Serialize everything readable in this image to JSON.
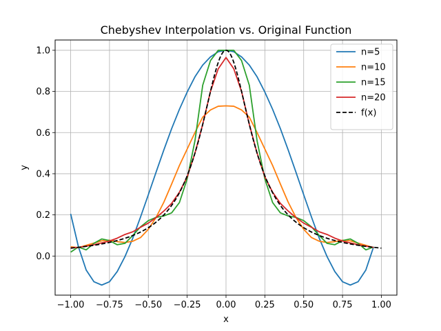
{
  "chart_data": {
    "type": "line",
    "title": "Chebyshev Interpolation vs. Original Function",
    "xlabel": "x",
    "ylabel": "y",
    "xlim": [
      -1.1,
      1.1
    ],
    "ylim": [
      -0.19,
      1.05
    ],
    "xticks": [
      -1.0,
      -0.75,
      -0.5,
      -0.25,
      0.0,
      0.25,
      0.5,
      0.75,
      1.0
    ],
    "xtick_labels": [
      "−1.00",
      "−0.75",
      "−0.50",
      "−0.25",
      "0.00",
      "0.25",
      "0.50",
      "0.75",
      "1.00"
    ],
    "yticks": [
      0.0,
      0.2,
      0.4,
      0.6,
      0.8,
      1.0
    ],
    "ytick_labels": [
      "0.0",
      "0.2",
      "0.4",
      "0.6",
      "0.8",
      "1.0"
    ],
    "grid": true,
    "legend_position": "upper right",
    "x": [
      -1.0,
      -0.95,
      -0.9,
      -0.85,
      -0.8,
      -0.75,
      -0.7,
      -0.65,
      -0.6,
      -0.55,
      -0.5,
      -0.45,
      -0.4,
      -0.35,
      -0.3,
      -0.25,
      -0.2,
      -0.15,
      -0.1,
      -0.05,
      0.0,
      0.05,
      0.1,
      0.15,
      0.2,
      0.25,
      0.3,
      0.35,
      0.4,
      0.45,
      0.5,
      0.55,
      0.6,
      0.65,
      0.7,
      0.75,
      0.8,
      0.85,
      0.9,
      0.95
    ],
    "series": [
      {
        "name": "n=5",
        "color": "#1f77b4",
        "dashed": false,
        "values": [
          0.205,
          0.045,
          -0.068,
          -0.125,
          -0.141,
          -0.125,
          -0.075,
          -0.002,
          0.087,
          0.19,
          0.298,
          0.408,
          0.516,
          0.619,
          0.713,
          0.797,
          0.871,
          0.928,
          0.968,
          0.993,
          1.0,
          0.993,
          0.968,
          0.928,
          0.871,
          0.797,
          0.713,
          0.619,
          0.516,
          0.408,
          0.298,
          0.19,
          0.087,
          -0.002,
          -0.075,
          -0.125,
          -0.141,
          -0.125,
          -0.068,
          0.045
        ]
      },
      {
        "name": "n=10",
        "color": "#ff7f0e",
        "dashed": false,
        "values": [
          0.045,
          0.041,
          0.052,
          0.063,
          0.074,
          0.077,
          0.07,
          0.066,
          0.072,
          0.09,
          0.13,
          0.188,
          0.262,
          0.35,
          0.44,
          0.52,
          0.6,
          0.675,
          0.71,
          0.728,
          0.73,
          0.728,
          0.71,
          0.675,
          0.6,
          0.52,
          0.44,
          0.35,
          0.262,
          0.188,
          0.13,
          0.09,
          0.072,
          0.066,
          0.07,
          0.077,
          0.074,
          0.063,
          0.052,
          0.041
        ]
      },
      {
        "name": "n=15",
        "color": "#2ca02c",
        "dashed": false,
        "values": [
          0.019,
          0.044,
          0.03,
          0.062,
          0.083,
          0.075,
          0.055,
          0.062,
          0.1,
          0.142,
          0.172,
          0.188,
          0.195,
          0.21,
          0.26,
          0.375,
          0.56,
          0.83,
          0.95,
          1.0,
          1.0,
          1.0,
          0.95,
          0.83,
          0.56,
          0.375,
          0.26,
          0.21,
          0.195,
          0.188,
          0.172,
          0.142,
          0.1,
          0.062,
          0.055,
          0.075,
          0.083,
          0.062,
          0.03,
          0.044
        ]
      },
      {
        "name": "n=20",
        "color": "#d62728",
        "dashed": false,
        "values": [
          0.04,
          0.042,
          0.048,
          0.055,
          0.064,
          0.073,
          0.087,
          0.105,
          0.118,
          0.14,
          0.16,
          0.187,
          0.219,
          0.256,
          0.31,
          0.385,
          0.5,
          0.64,
          0.8,
          0.91,
          0.965,
          0.91,
          0.8,
          0.64,
          0.5,
          0.385,
          0.31,
          0.256,
          0.219,
          0.187,
          0.16,
          0.14,
          0.118,
          0.105,
          0.087,
          0.073,
          0.064,
          0.055,
          0.048,
          0.042
        ]
      },
      {
        "name": "f(x)",
        "color": "#000000",
        "dashed": true,
        "function": "1/(1+25x^2)",
        "x_range": [
          -1.0,
          1.0
        ]
      }
    ]
  }
}
